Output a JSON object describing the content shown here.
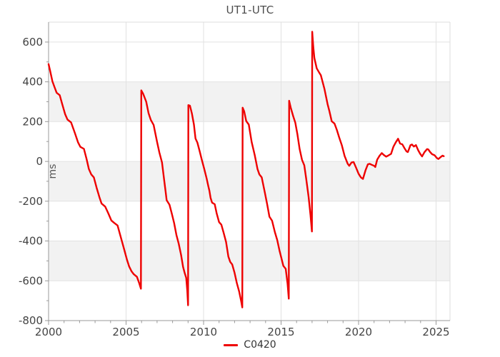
{
  "title": "UT1-UTC",
  "legend": {
    "label": "C0420",
    "swatch_color": "#ee0000"
  },
  "colors": {
    "series_red": "#ee0000",
    "band_gray": "#f2f2f2",
    "gridline": "#e2e2e2",
    "axis_line": "#999999",
    "border_light": "#dddddd",
    "tick_text": "#444444",
    "title_text": "#4d4d4d",
    "unit_text": "#555555"
  },
  "chart_data": {
    "type": "line",
    "title": "UT1-UTC",
    "xlabel": "",
    "ylabel": "ms",
    "legend_entries": [
      "C0420"
    ],
    "legend_position": "bottom-center",
    "x_range": [
      2000,
      2025.9
    ],
    "y_range": [
      -800,
      700
    ],
    "x_major_ticks": [
      2000,
      2005,
      2010,
      2015,
      2020,
      2025
    ],
    "x_minor_tick_step_years": 1,
    "y_major_ticks": [
      -800,
      -600,
      -400,
      -200,
      0,
      200,
      400,
      600
    ],
    "y_minor_ticks": [
      -700,
      -500,
      -300,
      -100,
      100,
      300,
      500
    ],
    "h_gridlines": [
      -600,
      -400,
      -200,
      0,
      200,
      400,
      600
    ],
    "v_gridlines": [
      2005,
      2010,
      2015,
      2020,
      2025
    ],
    "gray_bands": [
      [
        400,
        200
      ],
      [
        0,
        -200
      ],
      [
        -400,
        -600
      ]
    ],
    "grid": true,
    "series": [
      {
        "name": "C0420",
        "color": "#ee0000",
        "unit": "ms",
        "points": [
          [
            2000.0,
            489
          ],
          [
            2000.1,
            455
          ],
          [
            2000.25,
            402
          ],
          [
            2000.4,
            370
          ],
          [
            2000.52,
            345
          ],
          [
            2000.72,
            333
          ],
          [
            2000.88,
            288
          ],
          [
            2001.07,
            237
          ],
          [
            2001.22,
            210
          ],
          [
            2001.45,
            196
          ],
          [
            2001.7,
            142
          ],
          [
            2001.9,
            96
          ],
          [
            2002.05,
            73
          ],
          [
            2002.28,
            63
          ],
          [
            2002.45,
            12
          ],
          [
            2002.6,
            -38
          ],
          [
            2002.75,
            -65
          ],
          [
            2002.92,
            -80
          ],
          [
            2003.1,
            -133
          ],
          [
            2003.28,
            -180
          ],
          [
            2003.42,
            -212
          ],
          [
            2003.65,
            -227
          ],
          [
            2003.85,
            -260
          ],
          [
            2004.05,
            -297
          ],
          [
            2004.22,
            -308
          ],
          [
            2004.45,
            -322
          ],
          [
            2004.65,
            -378
          ],
          [
            2004.88,
            -443
          ],
          [
            2005.05,
            -492
          ],
          [
            2005.2,
            -528
          ],
          [
            2005.35,
            -552
          ],
          [
            2005.5,
            -567
          ],
          [
            2005.7,
            -580
          ],
          [
            2005.85,
            -612
          ],
          [
            2005.96,
            -640
          ],
          [
            2005.98,
            357
          ],
          [
            2006.1,
            340
          ],
          [
            2006.3,
            300
          ],
          [
            2006.45,
            242
          ],
          [
            2006.6,
            208
          ],
          [
            2006.78,
            183
          ],
          [
            2007.0,
            98
          ],
          [
            2007.15,
            45
          ],
          [
            2007.32,
            -5
          ],
          [
            2007.45,
            -90
          ],
          [
            2007.55,
            -150
          ],
          [
            2007.62,
            -195
          ],
          [
            2007.8,
            -218
          ],
          [
            2007.95,
            -262
          ],
          [
            2008.1,
            -310
          ],
          [
            2008.25,
            -370
          ],
          [
            2008.4,
            -415
          ],
          [
            2008.55,
            -470
          ],
          [
            2008.68,
            -530
          ],
          [
            2008.78,
            -560
          ],
          [
            2008.88,
            -585
          ],
          [
            2008.95,
            -650
          ],
          [
            2009.0,
            -723
          ],
          [
            2009.02,
            283
          ],
          [
            2009.12,
            280
          ],
          [
            2009.25,
            240
          ],
          [
            2009.38,
            185
          ],
          [
            2009.48,
            115
          ],
          [
            2009.6,
            95
          ],
          [
            2009.75,
            50
          ],
          [
            2009.88,
            10
          ],
          [
            2010.05,
            -40
          ],
          [
            2010.2,
            -86
          ],
          [
            2010.3,
            -122
          ],
          [
            2010.38,
            -148
          ],
          [
            2010.45,
            -183
          ],
          [
            2010.55,
            -207
          ],
          [
            2010.72,
            -215
          ],
          [
            2010.85,
            -262
          ],
          [
            2011.0,
            -305
          ],
          [
            2011.15,
            -318
          ],
          [
            2011.3,
            -360
          ],
          [
            2011.45,
            -405
          ],
          [
            2011.6,
            -478
          ],
          [
            2011.72,
            -505
          ],
          [
            2011.85,
            -518
          ],
          [
            2012.0,
            -560
          ],
          [
            2012.15,
            -612
          ],
          [
            2012.3,
            -655
          ],
          [
            2012.42,
            -700
          ],
          [
            2012.5,
            -734
          ],
          [
            2012.52,
            270
          ],
          [
            2012.62,
            252
          ],
          [
            2012.75,
            203
          ],
          [
            2012.92,
            185
          ],
          [
            2013.1,
            98
          ],
          [
            2013.3,
            32
          ],
          [
            2013.48,
            -38
          ],
          [
            2013.6,
            -65
          ],
          [
            2013.75,
            -80
          ],
          [
            2013.95,
            -155
          ],
          [
            2014.1,
            -215
          ],
          [
            2014.25,
            -278
          ],
          [
            2014.42,
            -298
          ],
          [
            2014.6,
            -355
          ],
          [
            2014.75,
            -395
          ],
          [
            2014.9,
            -448
          ],
          [
            2015.05,
            -495
          ],
          [
            2015.15,
            -525
          ],
          [
            2015.3,
            -540
          ],
          [
            2015.42,
            -615
          ],
          [
            2015.5,
            -690
          ],
          [
            2015.52,
            305
          ],
          [
            2015.62,
            272
          ],
          [
            2015.78,
            228
          ],
          [
            2015.92,
            195
          ],
          [
            2016.05,
            138
          ],
          [
            2016.2,
            62
          ],
          [
            2016.35,
            8
          ],
          [
            2016.5,
            -20
          ],
          [
            2016.62,
            -85
          ],
          [
            2016.78,
            -180
          ],
          [
            2016.9,
            -270
          ],
          [
            2016.99,
            -352
          ],
          [
            2017.01,
            652
          ],
          [
            2017.08,
            575
          ],
          [
            2017.15,
            520
          ],
          [
            2017.3,
            468
          ],
          [
            2017.45,
            448
          ],
          [
            2017.57,
            433
          ],
          [
            2017.8,
            365
          ],
          [
            2018.0,
            288
          ],
          [
            2018.12,
            252
          ],
          [
            2018.27,
            202
          ],
          [
            2018.45,
            190
          ],
          [
            2018.6,
            158
          ],
          [
            2018.75,
            120
          ],
          [
            2018.92,
            82
          ],
          [
            2019.1,
            28
          ],
          [
            2019.3,
            -12
          ],
          [
            2019.4,
            -22
          ],
          [
            2019.55,
            -5
          ],
          [
            2019.68,
            -3
          ],
          [
            2019.85,
            -33
          ],
          [
            2020.0,
            -62
          ],
          [
            2020.15,
            -80
          ],
          [
            2020.28,
            -88
          ],
          [
            2020.45,
            -45
          ],
          [
            2020.6,
            -15
          ],
          [
            2020.72,
            -12
          ],
          [
            2020.85,
            -17
          ],
          [
            2021.0,
            -22
          ],
          [
            2021.08,
            -28
          ],
          [
            2021.2,
            8
          ],
          [
            2021.35,
            28
          ],
          [
            2021.5,
            42
          ],
          [
            2021.62,
            33
          ],
          [
            2021.78,
            24
          ],
          [
            2021.95,
            31
          ],
          [
            2022.1,
            38
          ],
          [
            2022.25,
            74
          ],
          [
            2022.4,
            96
          ],
          [
            2022.55,
            114
          ],
          [
            2022.68,
            90
          ],
          [
            2022.82,
            86
          ],
          [
            2022.95,
            68
          ],
          [
            2023.1,
            50
          ],
          [
            2023.18,
            47
          ],
          [
            2023.35,
            82
          ],
          [
            2023.45,
            85
          ],
          [
            2023.57,
            75
          ],
          [
            2023.7,
            82
          ],
          [
            2023.85,
            56
          ],
          [
            2023.98,
            38
          ],
          [
            2024.1,
            25
          ],
          [
            2024.25,
            46
          ],
          [
            2024.42,
            62
          ],
          [
            2024.5,
            60
          ],
          [
            2024.62,
            47
          ],
          [
            2024.75,
            36
          ],
          [
            2024.9,
            31
          ],
          [
            2025.05,
            17
          ],
          [
            2025.15,
            12
          ],
          [
            2025.3,
            22
          ],
          [
            2025.42,
            29
          ],
          [
            2025.5,
            26
          ]
        ]
      }
    ]
  }
}
